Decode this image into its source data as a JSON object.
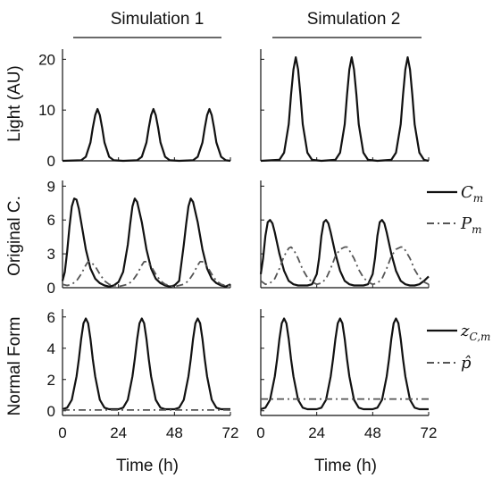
{
  "figure": {
    "column_titles": [
      "Simulation 1",
      "Simulation 2"
    ],
    "row_labels": [
      "Light (AU)",
      "Original C.",
      "Normal Form"
    ],
    "xlabel": "Time (h)",
    "x_ticks": [
      "0",
      "24",
      "48",
      "72"
    ],
    "y_ticks": [
      [
        "0",
        "10",
        "20"
      ],
      [
        "0",
        "3",
        "6",
        "9"
      ],
      [
        "0",
        "2",
        "4",
        "6"
      ]
    ],
    "legends": {
      "row2": [
        {
          "label": "C",
          "sub": "m",
          "style": "solid"
        },
        {
          "label": "P",
          "sub": "m",
          "style": "dashdot"
        }
      ],
      "row3": [
        {
          "label": "z",
          "sub": "C,m",
          "style": "solid"
        },
        {
          "label": "p̂",
          "sub": "",
          "style": "dashdot"
        }
      ]
    }
  },
  "chart_data": [
    {
      "type": "line",
      "panel": "light-sim1",
      "xlim": [
        0,
        72
      ],
      "ylim": [
        0,
        22
      ],
      "series": [
        {
          "x": [
            0,
            8,
            10,
            12,
            13,
            14,
            15,
            16,
            17,
            18,
            20,
            22,
            26,
            32,
            34,
            36,
            37,
            38,
            39,
            40,
            41,
            42,
            44,
            46,
            50,
            56,
            58,
            60,
            61,
            62,
            63,
            64,
            65,
            66,
            68,
            70,
            72
          ],
          "y": [
            0,
            0.1,
            0.8,
            3.6,
            6.5,
            9.0,
            10.2,
            9.0,
            6.5,
            3.6,
            0.8,
            0.1,
            0,
            0.1,
            0.8,
            3.6,
            6.5,
            9.0,
            10.2,
            9.0,
            6.5,
            3.6,
            0.8,
            0.1,
            0,
            0.1,
            0.8,
            3.6,
            6.5,
            9.0,
            10.2,
            9.0,
            6.5,
            3.6,
            0.8,
            0.1,
            0
          ]
        }
      ]
    },
    {
      "type": "line",
      "panel": "light-sim2",
      "xlim": [
        0,
        72
      ],
      "ylim": [
        0,
        22
      ],
      "series": [
        {
          "x": [
            0,
            8,
            10,
            12,
            13,
            14,
            15,
            16,
            17,
            18,
            20,
            22,
            26,
            32,
            34,
            36,
            37,
            38,
            39,
            40,
            41,
            42,
            44,
            46,
            50,
            56,
            58,
            60,
            61,
            62,
            63,
            64,
            65,
            66,
            68,
            70,
            72
          ],
          "y": [
            0,
            0.2,
            1.6,
            7.2,
            13,
            18,
            20.4,
            18,
            13,
            7.2,
            1.6,
            0.2,
            0,
            0.2,
            1.6,
            7.2,
            13,
            18,
            20.4,
            18,
            13,
            7.2,
            1.6,
            0.2,
            0,
            0.2,
            1.6,
            7.2,
            13,
            18,
            20.4,
            18,
            13,
            7.2,
            1.6,
            0.2,
            0
          ]
        }
      ]
    },
    {
      "type": "line",
      "panel": "orig-sim1",
      "xlim": [
        0,
        72
      ],
      "ylim": [
        0,
        9.5
      ],
      "series": [
        {
          "style": "solid",
          "x": [
            0,
            1,
            2,
            3,
            4,
            5,
            6,
            7,
            8,
            10,
            12,
            14,
            16,
            18,
            20,
            22,
            24,
            26,
            28,
            29,
            30,
            31,
            32,
            34,
            36,
            38,
            40,
            42,
            44,
            46,
            48,
            50,
            52,
            53,
            54,
            55,
            56,
            58,
            60,
            62,
            64,
            66,
            68,
            70,
            72
          ],
          "y": [
            0.6,
            1.4,
            3.2,
            5.4,
            7.2,
            7.9,
            7.8,
            7.0,
            5.8,
            3.4,
            1.7,
            0.8,
            0.4,
            0.2,
            0.1,
            0.2,
            0.5,
            1.4,
            3.8,
            5.6,
            7.2,
            7.9,
            7.6,
            5.8,
            3.4,
            1.7,
            0.8,
            0.4,
            0.2,
            0.1,
            0.2,
            0.6,
            3.8,
            5.6,
            7.2,
            7.9,
            7.6,
            5.8,
            3.4,
            1.7,
            0.8,
            0.4,
            0.2,
            0.1,
            0.3
          ]
        },
        {
          "style": "dashdot",
          "x": [
            0,
            2,
            4,
            6,
            8,
            10,
            11,
            12,
            14,
            16,
            18,
            20,
            22,
            24,
            26,
            28,
            30,
            32,
            34,
            35,
            36,
            38,
            40,
            42,
            44,
            46,
            48,
            50,
            52,
            54,
            56,
            58,
            59,
            60,
            62,
            64,
            66,
            68,
            70,
            72
          ],
          "y": [
            0.3,
            0.2,
            0.3,
            0.6,
            1.2,
            2.0,
            2.3,
            2.3,
            1.9,
            1.2,
            0.6,
            0.3,
            0.2,
            0.1,
            0.2,
            0.3,
            0.6,
            1.2,
            2.0,
            2.3,
            2.3,
            1.9,
            1.2,
            0.6,
            0.3,
            0.2,
            0.1,
            0.2,
            0.3,
            0.6,
            1.2,
            2.0,
            2.3,
            2.3,
            1.9,
            1.2,
            0.6,
            0.3,
            0.2,
            0.2
          ]
        }
      ]
    },
    {
      "type": "line",
      "panel": "orig-sim2",
      "xlim": [
        0,
        72
      ],
      "ylim": [
        0,
        9.5
      ],
      "series": [
        {
          "style": "solid",
          "x": [
            0,
            1,
            2,
            3,
            4,
            5,
            6,
            8,
            10,
            12,
            14,
            16,
            18,
            20,
            22,
            24,
            25,
            26,
            27,
            28,
            29,
            30,
            32,
            34,
            36,
            38,
            40,
            42,
            44,
            46,
            48,
            49,
            50,
            51,
            52,
            53,
            54,
            56,
            58,
            60,
            62,
            64,
            66,
            68,
            70,
            72
          ],
          "y": [
            1.2,
            2.6,
            4.6,
            5.8,
            6.0,
            5.7,
            4.9,
            3.0,
            1.5,
            0.6,
            0.3,
            0.2,
            0.2,
            0.2,
            0.3,
            1.2,
            2.6,
            4.6,
            5.8,
            6.0,
            5.7,
            4.9,
            3.0,
            1.5,
            0.6,
            0.3,
            0.2,
            0.2,
            0.2,
            0.3,
            1.2,
            2.6,
            4.6,
            5.8,
            6.0,
            5.7,
            4.9,
            3.0,
            1.5,
            0.6,
            0.3,
            0.2,
            0.2,
            0.3,
            0.6,
            1.0
          ]
        },
        {
          "style": "dashdot",
          "x": [
            0,
            2,
            4,
            6,
            8,
            10,
            12,
            13,
            14,
            16,
            18,
            20,
            22,
            24,
            26,
            28,
            30,
            32,
            34,
            36,
            37,
            38,
            40,
            42,
            44,
            46,
            48,
            50,
            52,
            54,
            56,
            58,
            60,
            61,
            62,
            64,
            66,
            68,
            70,
            72
          ],
          "y": [
            0.6,
            0.3,
            0.4,
            0.8,
            1.7,
            2.8,
            3.5,
            3.6,
            3.4,
            2.6,
            1.6,
            0.9,
            0.5,
            0.3,
            0.4,
            0.8,
            1.7,
            2.8,
            3.4,
            3.6,
            3.6,
            3.3,
            2.6,
            1.6,
            0.9,
            0.5,
            0.3,
            0.4,
            0.8,
            1.7,
            2.8,
            3.4,
            3.6,
            3.6,
            3.3,
            2.6,
            1.6,
            0.9,
            0.5,
            0.3
          ]
        }
      ]
    },
    {
      "type": "line",
      "panel": "normal-sim1",
      "xlim": [
        0,
        72
      ],
      "ylim": [
        -0.3,
        6.5
      ],
      "series": [
        {
          "style": "solid",
          "x": [
            0,
            2,
            4,
            6,
            7,
            8,
            9,
            10,
            11,
            12,
            13,
            14,
            16,
            18,
            20,
            22,
            24,
            26,
            28,
            30,
            31,
            32,
            33,
            34,
            35,
            36,
            37,
            38,
            40,
            42,
            44,
            46,
            48,
            50,
            52,
            54,
            55,
            56,
            57,
            58,
            59,
            60,
            61,
            62,
            64,
            66,
            68,
            70,
            72
          ],
          "y": [
            0.1,
            0.2,
            0.7,
            2.2,
            3.3,
            4.6,
            5.6,
            5.9,
            5.6,
            4.6,
            3.3,
            2.2,
            0.7,
            0.2,
            0.1,
            0.1,
            0.1,
            0.2,
            0.7,
            2.2,
            3.3,
            4.6,
            5.6,
            5.9,
            5.6,
            4.6,
            3.3,
            2.2,
            0.7,
            0.2,
            0.1,
            0.1,
            0.1,
            0.2,
            0.7,
            2.2,
            3.3,
            4.6,
            5.6,
            5.9,
            5.6,
            4.6,
            3.3,
            2.2,
            0.7,
            0.2,
            0.1,
            0.1,
            0.1
          ]
        },
        {
          "style": "dashdot",
          "x": [
            0,
            72
          ],
          "y": [
            0.05,
            0.05
          ]
        }
      ]
    },
    {
      "type": "line",
      "panel": "normal-sim2",
      "xlim": [
        0,
        72
      ],
      "ylim": [
        -0.3,
        6.5
      ],
      "series": [
        {
          "style": "solid",
          "x": [
            0,
            2,
            4,
            6,
            7,
            8,
            9,
            10,
            11,
            12,
            13,
            14,
            16,
            18,
            20,
            22,
            24,
            26,
            28,
            30,
            31,
            32,
            33,
            34,
            35,
            36,
            37,
            38,
            40,
            42,
            44,
            46,
            48,
            50,
            52,
            54,
            55,
            56,
            57,
            58,
            59,
            60,
            61,
            62,
            64,
            66,
            68,
            70,
            72
          ],
          "y": [
            0.1,
            0.2,
            0.7,
            2.2,
            3.3,
            4.6,
            5.6,
            5.9,
            5.6,
            4.6,
            3.3,
            2.2,
            0.7,
            0.2,
            0.1,
            0.1,
            0.1,
            0.2,
            0.7,
            2.2,
            3.3,
            4.6,
            5.6,
            5.9,
            5.6,
            4.6,
            3.3,
            2.2,
            0.7,
            0.2,
            0.1,
            0.1,
            0.1,
            0.2,
            0.7,
            2.2,
            3.3,
            4.6,
            5.6,
            5.9,
            5.6,
            4.6,
            3.3,
            2.2,
            0.7,
            0.2,
            0.1,
            0.1,
            0.1
          ]
        },
        {
          "style": "dashdot",
          "x": [
            0,
            72
          ],
          "y": [
            0.75,
            0.75
          ]
        }
      ]
    }
  ]
}
